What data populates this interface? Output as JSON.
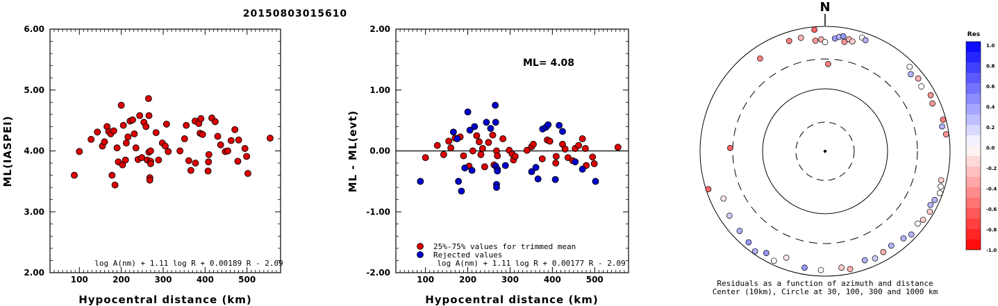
{
  "title": "20150803015610",
  "compass_label": "N",
  "colorbar": {
    "title": "Res",
    "ticks": [
      "1.0",
      "0.8",
      "0.6",
      "0.4",
      "0.2",
      "0.0",
      "-0.2",
      "-0.4",
      "-0.6",
      "-0.8",
      "-1.0"
    ],
    "positive_color": "#0000ff",
    "negative_color": "#ff0000"
  },
  "chart_data": [
    {
      "type": "scatter",
      "title": "",
      "xlabel": "Hypocentral distance (km)",
      "ylabel": "ML(IASPEI)",
      "xlim": [
        30,
        580
      ],
      "ylim": [
        2.0,
        6.0
      ],
      "xticks": [
        "100",
        "200",
        "300",
        "400",
        "500"
      ],
      "yticks": [
        "2.00",
        "3.00",
        "4.00",
        "5.00",
        "6.00"
      ],
      "formula": "log A(nm) + 1.11 log R + 0.00189 R - 2.09",
      "marker_color": "#dd0000",
      "points": [
        [
          88,
          3.6
        ],
        [
          100,
          3.99
        ],
        [
          128,
          4.19
        ],
        [
          143,
          4.31
        ],
        [
          155,
          4.08
        ],
        [
          160,
          4.15
        ],
        [
          166,
          4.4
        ],
        [
          170,
          4.32
        ],
        [
          175,
          4.28
        ],
        [
          178,
          3.6
        ],
        [
          182,
          4.33
        ],
        [
          185,
          3.44
        ],
        [
          190,
          4.05
        ],
        [
          193,
          3.82
        ],
        [
          200,
          4.75
        ],
        [
          203,
          3.77
        ],
        [
          205,
          4.42
        ],
        [
          210,
          3.85
        ],
        [
          212,
          4.13
        ],
        [
          216,
          4.23
        ],
        [
          221,
          4.49
        ],
        [
          227,
          4.51
        ],
        [
          231,
          4.28
        ],
        [
          235,
          4.05
        ],
        [
          240,
          3.86
        ],
        [
          244,
          4.58
        ],
        [
          249,
          3.89
        ],
        [
          254,
          4.47
        ],
        [
          259,
          4.4
        ],
        [
          262,
          3.85
        ],
        [
          265,
          4.86
        ],
        [
          266,
          4.58
        ],
        [
          266,
          3.98
        ],
        [
          268,
          3.56
        ],
        [
          268,
          3.52
        ],
        [
          270,
          4.0
        ],
        [
          270,
          3.83
        ],
        [
          270,
          3.79
        ],
        [
          283,
          4.3
        ],
        [
          289,
          3.85
        ],
        [
          298,
          4.13
        ],
        [
          305,
          4.08
        ],
        [
          308,
          4.44
        ],
        [
          312,
          3.99
        ],
        [
          340,
          4.0
        ],
        [
          351,
          4.2
        ],
        [
          355,
          4.42
        ],
        [
          361,
          3.84
        ],
        [
          366,
          3.68
        ],
        [
          376,
          4.49
        ],
        [
          377,
          3.8
        ],
        [
          385,
          4.45
        ],
        [
          388,
          4.29
        ],
        [
          390,
          4.53
        ],
        [
          394,
          4.27
        ],
        [
          407,
          3.67
        ],
        [
          408,
          3.82
        ],
        [
          409,
          3.94
        ],
        [
          416,
          4.54
        ],
        [
          424,
          4.48
        ],
        [
          430,
          4.24
        ],
        [
          437,
          4.1
        ],
        [
          448,
          3.99
        ],
        [
          454,
          4.0
        ],
        [
          462,
          4.17
        ],
        [
          471,
          4.35
        ],
        [
          478,
          3.83
        ],
        [
          480,
          4.18
        ],
        [
          495,
          4.04
        ],
        [
          499,
          3.91
        ],
        [
          502,
          3.63
        ],
        [
          555,
          4.21
        ]
      ]
    },
    {
      "type": "scatter",
      "title": "",
      "xlabel": "Hypocentral distance (km)",
      "ylabel": "ML - ML(evt)",
      "xlim": [
        30,
        580
      ],
      "ylim": [
        -2.0,
        2.0
      ],
      "xticks": [
        "100",
        "200",
        "300",
        "400",
        "500"
      ],
      "yticks": [
        "-2.00",
        "-1.00",
        "0.00",
        "1.00",
        "2.00"
      ],
      "annotation": "ML= 4.08",
      "formula": "log A(nm) + 1.11 log R + 0.00177 R - 2.09",
      "series": [
        {
          "name": "25%-75% values for trimmed mean",
          "color": "#dd0000",
          "points": [
            [
              100,
              -0.11
            ],
            [
              128,
              0.09
            ],
            [
              143,
              -0.06
            ],
            [
              155,
              0.16
            ],
            [
              160,
              0.05
            ],
            [
              170,
              0.21
            ],
            [
              182,
              0.23
            ],
            [
              190,
              -0.08
            ],
            [
              203,
              -0.25
            ],
            [
              212,
              0.0
            ],
            [
              221,
              0.25
            ],
            [
              227,
              0.15
            ],
            [
              231,
              -0.06
            ],
            [
              235,
              0.04
            ],
            [
              240,
              -0.26
            ],
            [
              249,
              0.14
            ],
            [
              259,
              0.26
            ],
            [
              262,
              -0.23
            ],
            [
              268,
              0.0
            ],
            [
              270,
              -0.08
            ],
            [
              283,
              0.2
            ],
            [
              298,
              0.01
            ],
            [
              305,
              -0.05
            ],
            [
              308,
              -0.15
            ],
            [
              312,
              -0.09
            ],
            [
              340,
              0.01
            ],
            [
              351,
              0.07
            ],
            [
              355,
              0.11
            ],
            [
              376,
              -0.13
            ],
            [
              388,
              0.18
            ],
            [
              394,
              0.16
            ],
            [
              408,
              -0.2
            ],
            [
              409,
              -0.09
            ],
            [
              424,
              0.11
            ],
            [
              430,
              0.03
            ],
            [
              437,
              -0.11
            ],
            [
              448,
              -0.16
            ],
            [
              454,
              0.04
            ],
            [
              462,
              0.09
            ],
            [
              471,
              0.2
            ],
            [
              478,
              0.04
            ],
            [
              480,
              -0.24
            ],
            [
              495,
              -0.1
            ],
            [
              499,
              -0.21
            ],
            [
              555,
              0.06
            ]
          ]
        },
        {
          "name": "Rejected values",
          "color": "#0000cc",
          "points": [
            [
              88,
              -0.5
            ],
            [
              166,
              0.31
            ],
            [
              175,
              0.2
            ],
            [
              178,
              -0.5
            ],
            [
              185,
              -0.66
            ],
            [
              193,
              -0.28
            ],
            [
              200,
              0.64
            ],
            [
              205,
              0.34
            ],
            [
              210,
              -0.32
            ],
            [
              216,
              0.4
            ],
            [
              244,
              0.47
            ],
            [
              254,
              0.37
            ],
            [
              265,
              0.75
            ],
            [
              266,
              0.47
            ],
            [
              266,
              -0.25
            ],
            [
              268,
              -0.55
            ],
            [
              268,
              -0.6
            ],
            [
              270,
              -0.3
            ],
            [
              270,
              -0.33
            ],
            [
              289,
              -0.24
            ],
            [
              351,
              -0.34
            ],
            [
              361,
              -0.27
            ],
            [
              366,
              -0.46
            ],
            [
              377,
              0.36
            ],
            [
              385,
              0.39
            ],
            [
              390,
              0.43
            ],
            [
              407,
              -0.47
            ],
            [
              416,
              0.42
            ],
            [
              424,
              0.32
            ],
            [
              454,
              -0.18
            ],
            [
              471,
              -0.3
            ],
            [
              502,
              -0.5
            ]
          ]
        }
      ]
    },
    {
      "type": "polar",
      "title": "",
      "caption_line1": "Residuals as a function of azimuth and distance",
      "caption_line2": "Center (10km), Circle at 30, 100, 300 and 1000 km",
      "residual_colors": {
        "positive": "#0000ff",
        "negative": "#ff0000"
      },
      "stations": [
        {
          "az": -5,
          "dist": 900,
          "res": -0.6
        },
        {
          "az": -18,
          "dist": 720,
          "res": -0.5
        },
        {
          "az": -12,
          "dist": 720,
          "res": -0.3
        },
        {
          "az": -5,
          "dist": 600,
          "res": -0.4
        },
        {
          "az": -2,
          "dist": 620,
          "res": -0.3
        },
        {
          "az": 0,
          "dist": 560,
          "res": 0.0
        },
        {
          "az": 5,
          "dist": 650,
          "res": 0.4
        },
        {
          "az": 7,
          "dist": 700,
          "res": 0.3
        },
        {
          "az": 9,
          "dist": 730,
          "res": 0.4
        },
        {
          "az": 10,
          "dist": 600,
          "res": -0.4
        },
        {
          "az": 12,
          "dist": 680,
          "res": -0.3
        },
        {
          "az": 14,
          "dist": 650,
          "res": -0.2
        },
        {
          "az": 18,
          "dist": 820,
          "res": 0.0
        },
        {
          "az": 20,
          "dist": 780,
          "res": 0.3
        },
        {
          "az": -35,
          "dist": 650,
          "res": -0.5
        },
        {
          "az": 2,
          "dist": 250,
          "res": -0.5
        },
        {
          "az": 45,
          "dist": 820,
          "res": 0.0
        },
        {
          "az": 48,
          "dist": 700,
          "res": 0.3
        },
        {
          "az": 52,
          "dist": 780,
          "res": -0.3
        },
        {
          "az": 56,
          "dist": 720,
          "res": 0.0
        },
        {
          "az": 62,
          "dist": 820,
          "res": -0.4
        },
        {
          "az": 66,
          "dist": 760,
          "res": -0.4
        },
        {
          "az": 75,
          "dist": 900,
          "res": -0.5
        },
        {
          "az": 78,
          "dist": 820,
          "res": 0.3
        },
        {
          "az": 82,
          "dist": 900,
          "res": -0.4
        },
        {
          "az": -88,
          "dist": 330,
          "res": -0.6
        },
        {
          "az": -108,
          "dist": 920,
          "res": -0.6
        },
        {
          "az": -115,
          "dist": 620,
          "res": -0.1
        },
        {
          "az": -124,
          "dist": 700,
          "res": 0.2
        },
        {
          "az": -133,
          "dist": 740,
          "res": 0.3
        },
        {
          "az": -140,
          "dist": 800,
          "res": 0.4
        },
        {
          "az": -145,
          "dist": 900,
          "res": 0.3
        },
        {
          "az": -150,
          "dist": 760,
          "res": 0.4
        },
        {
          "az": -155,
          "dist": 860,
          "res": 0.0
        },
        {
          "az": -160,
          "dist": 650,
          "res": -0.1
        },
        {
          "az": -170,
          "dist": 780,
          "res": 0.4
        },
        {
          "az": -178,
          "dist": 800,
          "res": 0.0
        },
        {
          "az": 172,
          "dist": 760,
          "res": -0.2
        },
        {
          "az": 168,
          "dist": 850,
          "res": -0.3
        },
        {
          "az": 160,
          "dist": 720,
          "res": 0.3
        },
        {
          "az": 155,
          "dist": 780,
          "res": 0.2
        },
        {
          "az": 150,
          "dist": 730,
          "res": -0.3
        },
        {
          "az": 145,
          "dist": 700,
          "res": 0.3
        },
        {
          "az": 138,
          "dist": 750,
          "res": 0.3
        },
        {
          "az": 134,
          "dist": 830,
          "res": 0.3
        },
        {
          "az": 128,
          "dist": 760,
          "res": 0.0
        },
        {
          "az": 125,
          "dist": 820,
          "res": -0.2
        },
        {
          "az": 120,
          "dist": 860,
          "res": -0.2
        },
        {
          "az": 117,
          "dist": 780,
          "res": 0.3
        },
        {
          "az": 114,
          "dist": 830,
          "res": 0.3
        },
        {
          "az": 110,
          "dist": 900,
          "res": 0.0
        },
        {
          "az": 107,
          "dist": 860,
          "res": 0.0
        },
        {
          "az": 104,
          "dist": 820,
          "res": -0.2
        }
      ]
    }
  ]
}
